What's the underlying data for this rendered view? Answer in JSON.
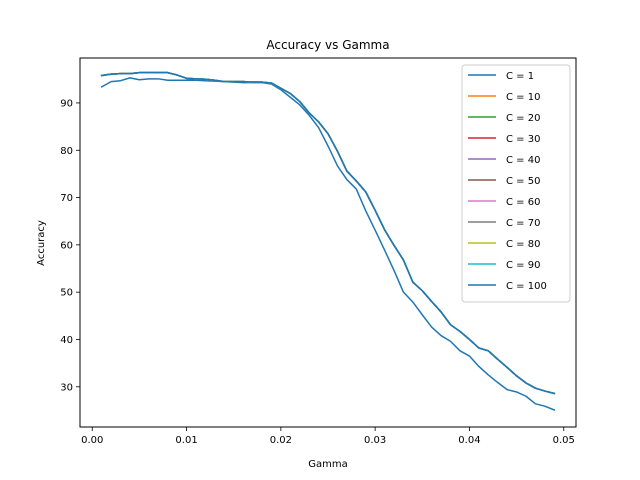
{
  "chart_data": {
    "type": "line",
    "title": "Accuracy vs Gamma",
    "xlabel": "Gamma",
    "ylabel": "Accuracy",
    "xlim": [
      -0.0013,
      0.0513
    ],
    "ylim": [
      21.5,
      99.5
    ],
    "xticks": [
      0.0,
      0.01,
      0.02,
      0.03,
      0.04,
      0.05
    ],
    "xtick_labels": [
      "0.00",
      "0.01",
      "0.02",
      "0.03",
      "0.04",
      "0.05"
    ],
    "yticks": [
      30,
      40,
      50,
      60,
      70,
      80,
      90
    ],
    "ytick_labels": [
      "30",
      "40",
      "50",
      "60",
      "70",
      "80",
      "90"
    ],
    "grid": false,
    "legend_position": "top-right",
    "x": [
      0.001,
      0.002,
      0.003,
      0.004,
      0.005,
      0.006,
      0.007,
      0.008,
      0.009,
      0.01,
      0.011,
      0.012,
      0.013,
      0.014,
      0.015,
      0.016,
      0.017,
      0.018,
      0.019,
      0.02,
      0.021,
      0.022,
      0.023,
      0.024,
      0.025,
      0.026,
      0.027,
      0.028,
      0.029,
      0.03,
      0.031,
      0.032,
      0.033,
      0.034,
      0.035,
      0.036,
      0.037,
      0.038,
      0.039,
      0.04,
      0.041,
      0.042,
      0.043,
      0.044,
      0.045,
      0.046,
      0.047,
      0.048,
      0.049
    ],
    "series": [
      {
        "name": "C = 1",
        "color": "#1f77b4",
        "values": [
          93.4,
          94.5,
          94.7,
          95.3,
          94.9,
          95.1,
          95.1,
          94.8,
          94.8,
          94.8,
          94.8,
          94.7,
          94.6,
          94.5,
          94.4,
          94.3,
          94.3,
          94.3,
          94.0,
          92.8,
          91.2,
          89.6,
          87.4,
          84.8,
          80.9,
          76.7,
          73.8,
          71.8,
          67.2,
          63.1,
          58.9,
          54.6,
          50.0,
          47.9,
          45.2,
          42.6,
          40.8,
          39.6,
          37.6,
          36.5,
          34.3,
          32.5,
          30.9,
          29.4,
          28.9,
          28.0,
          26.4,
          25.9,
          25.1
        ]
      },
      {
        "name": "C = 10",
        "color": "#ff7f0e",
        "values": [
          95.8,
          96.1,
          96.2,
          96.2,
          96.4,
          96.4,
          96.4,
          96.4,
          95.9,
          95.2,
          95.1,
          95.0,
          94.8,
          94.5,
          94.5,
          94.5,
          94.4,
          94.4,
          94.2,
          93.1,
          92.0,
          90.3,
          87.9,
          86.0,
          83.5,
          79.8,
          75.6,
          73.5,
          71.2,
          67.3,
          63.2,
          59.9,
          56.8,
          52.1,
          50.3,
          48.0,
          45.8,
          43.1,
          41.7,
          40.0,
          38.2,
          37.6,
          35.8,
          34.1,
          32.3,
          30.8,
          29.7,
          29.1,
          28.6
        ]
      },
      {
        "name": "C = 20",
        "color": "#2ca02c",
        "values": [
          95.8,
          96.1,
          96.2,
          96.2,
          96.4,
          96.4,
          96.4,
          96.4,
          95.9,
          95.2,
          95.1,
          95.0,
          94.8,
          94.5,
          94.5,
          94.5,
          94.4,
          94.4,
          94.2,
          93.1,
          92.0,
          90.3,
          87.9,
          86.0,
          83.5,
          79.8,
          75.6,
          73.5,
          71.2,
          67.3,
          63.2,
          59.9,
          56.8,
          52.1,
          50.3,
          48.0,
          45.8,
          43.1,
          41.7,
          40.0,
          38.2,
          37.6,
          35.8,
          34.1,
          32.3,
          30.8,
          29.7,
          29.1,
          28.6
        ]
      },
      {
        "name": "C = 30",
        "color": "#d62728",
        "values": [
          95.8,
          96.1,
          96.2,
          96.2,
          96.4,
          96.4,
          96.4,
          96.4,
          95.9,
          95.2,
          95.1,
          95.0,
          94.8,
          94.5,
          94.5,
          94.5,
          94.4,
          94.4,
          94.2,
          93.1,
          92.0,
          90.3,
          87.9,
          86.0,
          83.5,
          79.8,
          75.6,
          73.5,
          71.2,
          67.3,
          63.2,
          59.9,
          56.8,
          52.1,
          50.3,
          48.0,
          45.8,
          43.1,
          41.7,
          40.0,
          38.2,
          37.6,
          35.8,
          34.1,
          32.3,
          30.8,
          29.7,
          29.1,
          28.6
        ]
      },
      {
        "name": "C = 40",
        "color": "#9467bd",
        "values": [
          95.8,
          96.1,
          96.2,
          96.2,
          96.4,
          96.4,
          96.4,
          96.4,
          95.9,
          95.2,
          95.1,
          95.0,
          94.8,
          94.5,
          94.5,
          94.5,
          94.4,
          94.4,
          94.2,
          93.1,
          92.0,
          90.3,
          87.9,
          86.0,
          83.5,
          79.8,
          75.6,
          73.5,
          71.2,
          67.3,
          63.2,
          59.9,
          56.8,
          52.1,
          50.3,
          48.0,
          45.8,
          43.1,
          41.7,
          40.0,
          38.2,
          37.6,
          35.8,
          34.1,
          32.3,
          30.8,
          29.7,
          29.1,
          28.6
        ]
      },
      {
        "name": "C = 50",
        "color": "#8c564b",
        "values": [
          95.8,
          96.1,
          96.2,
          96.2,
          96.4,
          96.4,
          96.4,
          96.4,
          95.9,
          95.2,
          95.1,
          95.0,
          94.8,
          94.5,
          94.5,
          94.5,
          94.4,
          94.4,
          94.2,
          93.1,
          92.0,
          90.3,
          87.9,
          86.0,
          83.5,
          79.8,
          75.6,
          73.5,
          71.2,
          67.3,
          63.2,
          59.9,
          56.8,
          52.1,
          50.3,
          48.0,
          45.8,
          43.1,
          41.7,
          40.0,
          38.2,
          37.6,
          35.8,
          34.1,
          32.3,
          30.8,
          29.7,
          29.1,
          28.6
        ]
      },
      {
        "name": "C = 60",
        "color": "#e377c2",
        "values": [
          95.8,
          96.1,
          96.2,
          96.2,
          96.4,
          96.4,
          96.4,
          96.4,
          95.9,
          95.2,
          95.1,
          95.0,
          94.8,
          94.5,
          94.5,
          94.5,
          94.4,
          94.4,
          94.2,
          93.1,
          92.0,
          90.3,
          87.9,
          86.0,
          83.5,
          79.8,
          75.6,
          73.5,
          71.2,
          67.3,
          63.2,
          59.9,
          56.8,
          52.1,
          50.3,
          48.0,
          45.8,
          43.1,
          41.7,
          40.0,
          38.2,
          37.6,
          35.8,
          34.1,
          32.3,
          30.8,
          29.7,
          29.1,
          28.6
        ]
      },
      {
        "name": "C = 70",
        "color": "#7f7f7f",
        "values": [
          95.8,
          96.1,
          96.2,
          96.2,
          96.4,
          96.4,
          96.4,
          96.4,
          95.9,
          95.2,
          95.1,
          95.0,
          94.8,
          94.5,
          94.5,
          94.5,
          94.4,
          94.4,
          94.2,
          93.1,
          92.0,
          90.3,
          87.9,
          86.0,
          83.5,
          79.8,
          75.6,
          73.5,
          71.2,
          67.3,
          63.2,
          59.9,
          56.8,
          52.1,
          50.3,
          48.0,
          45.8,
          43.1,
          41.7,
          40.0,
          38.2,
          37.6,
          35.8,
          34.1,
          32.3,
          30.8,
          29.7,
          29.1,
          28.6
        ]
      },
      {
        "name": "C = 80",
        "color": "#bcbd22",
        "values": [
          95.8,
          96.1,
          96.2,
          96.2,
          96.4,
          96.4,
          96.4,
          96.4,
          95.9,
          95.2,
          95.1,
          95.0,
          94.8,
          94.5,
          94.5,
          94.5,
          94.4,
          94.4,
          94.2,
          93.1,
          92.0,
          90.3,
          87.9,
          86.0,
          83.5,
          79.8,
          75.6,
          73.5,
          71.2,
          67.3,
          63.2,
          59.9,
          56.8,
          52.1,
          50.3,
          48.0,
          45.8,
          43.1,
          41.7,
          40.0,
          38.2,
          37.6,
          35.8,
          34.1,
          32.3,
          30.8,
          29.7,
          29.1,
          28.6
        ]
      },
      {
        "name": "C = 90",
        "color": "#17becf",
        "values": [
          95.8,
          96.1,
          96.2,
          96.2,
          96.4,
          96.4,
          96.4,
          96.4,
          95.9,
          95.2,
          95.1,
          95.0,
          94.8,
          94.5,
          94.5,
          94.5,
          94.4,
          94.4,
          94.2,
          93.1,
          92.0,
          90.3,
          87.9,
          86.0,
          83.5,
          79.8,
          75.6,
          73.5,
          71.2,
          67.3,
          63.2,
          59.9,
          56.8,
          52.1,
          50.3,
          48.0,
          45.8,
          43.1,
          41.7,
          40.0,
          38.2,
          37.6,
          35.8,
          34.1,
          32.3,
          30.8,
          29.7,
          29.1,
          28.6
        ]
      },
      {
        "name": "C = 100",
        "color": "#1f77b4",
        "values": [
          95.8,
          96.1,
          96.2,
          96.2,
          96.4,
          96.4,
          96.4,
          96.4,
          95.9,
          95.2,
          95.1,
          95.0,
          94.8,
          94.5,
          94.5,
          94.5,
          94.4,
          94.4,
          94.2,
          93.1,
          92.0,
          90.3,
          87.9,
          86.0,
          83.5,
          79.8,
          75.6,
          73.5,
          71.2,
          67.3,
          63.2,
          59.9,
          56.8,
          52.1,
          50.3,
          48.0,
          45.8,
          43.1,
          41.7,
          40.0,
          38.2,
          37.6,
          35.8,
          34.1,
          32.3,
          30.8,
          29.7,
          29.1,
          28.6
        ]
      }
    ]
  }
}
